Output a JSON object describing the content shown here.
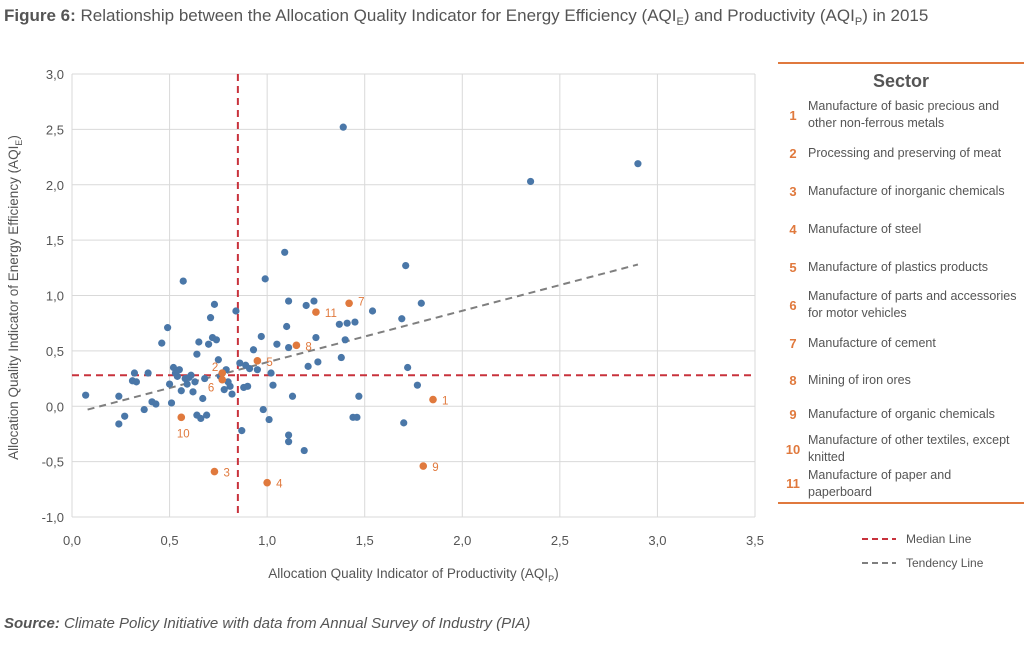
{
  "figure": {
    "label": "Figure 6:",
    "title_main": "Relationship between the Allocation Quality Indicator for Energy Efficiency (AQI",
    "title_sub_e": "E",
    "title_mid": ") and Productivity (AQI",
    "title_sub_p": "P",
    "title_end": ") in 2015"
  },
  "source": {
    "label": "Source:",
    "text": "Climate Policy Initiative with data from Annual Survey of Industry (PIA)"
  },
  "legend": {
    "heading": "Sector",
    "sectors": [
      {
        "num": "1",
        "name": "Manufacture of basic precious and other non-ferrous metals"
      },
      {
        "num": "2",
        "name": "Processing and preserving of meat"
      },
      {
        "num": "3",
        "name": "Manufacture of inorganic chemicals"
      },
      {
        "num": "4",
        "name": "Manufacture of steel"
      },
      {
        "num": "5",
        "name": "Manufacture of plastics products"
      },
      {
        "num": "6",
        "name": "Manufacture of parts and accessories for motor vehicles"
      },
      {
        "num": "7",
        "name": "Manufacture of cement"
      },
      {
        "num": "8",
        "name": "Mining of iron ores"
      },
      {
        "num": "9",
        "name": "Manufacture of organic chemicals"
      },
      {
        "num": "10",
        "name": "Manufacture of other textiles, except knitted"
      },
      {
        "num": "11",
        "name": "Manufacture of paper and paperboard"
      }
    ],
    "median_label": "Median Line",
    "tendency_label": "Tendency Line"
  },
  "colors": {
    "blue": "#4a77a8",
    "orange": "#e0793d",
    "median": "#c8323c",
    "tendency": "#7f7f7f",
    "grid": "#d9d9d9"
  },
  "chart_data": {
    "type": "scatter",
    "xlabel": "Allocation Quality Indicator of Productivity (AQI",
    "xlabel_sub": "P",
    "xlabel_end": ")",
    "ylabel": "Allocation Quality Indicator of Energy Efficiency (AQI",
    "ylabel_sub": "E",
    "ylabel_end": ")",
    "xlim": [
      0,
      3.5
    ],
    "ylim": [
      -1,
      3
    ],
    "x_ticks": [
      "0,0",
      "0,5",
      "1,0",
      "1,5",
      "2,0",
      "2,5",
      "3,0",
      "3,5"
    ],
    "x_tick_values": [
      0,
      0.5,
      1.0,
      1.5,
      2.0,
      2.5,
      3.0,
      3.5
    ],
    "y_ticks": [
      "3,0",
      "2,5",
      "2,0",
      "1,5",
      "1,0",
      "0,5",
      "0,0",
      "-0,5",
      "-1,0"
    ],
    "y_tick_values": [
      3.0,
      2.5,
      2.0,
      1.5,
      1.0,
      0.5,
      0.0,
      -0.5,
      -1.0
    ],
    "grid": true,
    "median_x": 0.85,
    "median_y": 0.28,
    "tendency_line": {
      "x": [
        0.08,
        2.9
      ],
      "y": [
        -0.03,
        1.28
      ]
    },
    "highlighted": [
      {
        "label": "1",
        "x": 1.85,
        "y": 0.06
      },
      {
        "label": "2",
        "x": 0.77,
        "y": 0.3
      },
      {
        "label": "3",
        "x": 0.73,
        "y": -0.59
      },
      {
        "label": "4",
        "x": 1.0,
        "y": -0.69
      },
      {
        "label": "5",
        "x": 0.95,
        "y": 0.41
      },
      {
        "label": "6",
        "x": 0.77,
        "y": 0.24
      },
      {
        "label": "7",
        "x": 1.42,
        "y": 0.93
      },
      {
        "label": "8",
        "x": 1.15,
        "y": 0.55
      },
      {
        "label": "9",
        "x": 1.8,
        "y": -0.54
      },
      {
        "label": "10",
        "x": 0.56,
        "y": -0.1
      },
      {
        "label": "11",
        "x": 1.25,
        "y": 0.85
      }
    ],
    "points": [
      [
        0.07,
        0.1
      ],
      [
        0.24,
        0.09
      ],
      [
        0.24,
        -0.16
      ],
      [
        0.27,
        -0.09
      ],
      [
        0.31,
        0.23
      ],
      [
        0.32,
        0.3
      ],
      [
        0.33,
        0.22
      ],
      [
        0.37,
        -0.03
      ],
      [
        0.39,
        0.3
      ],
      [
        0.41,
        0.04
      ],
      [
        0.43,
        0.02
      ],
      [
        0.46,
        0.57
      ],
      [
        0.49,
        0.71
      ],
      [
        0.5,
        0.2
      ],
      [
        0.51,
        0.03
      ],
      [
        0.52,
        0.35
      ],
      [
        0.53,
        0.3
      ],
      [
        0.54,
        0.27
      ],
      [
        0.55,
        0.33
      ],
      [
        0.56,
        0.14
      ],
      [
        0.57,
        1.13
      ],
      [
        0.58,
        0.25
      ],
      [
        0.59,
        0.2
      ],
      [
        0.6,
        0.26
      ],
      [
        0.61,
        0.28
      ],
      [
        0.62,
        0.13
      ],
      [
        0.63,
        0.22
      ],
      [
        0.64,
        0.47
      ],
      [
        0.64,
        -0.08
      ],
      [
        0.65,
        0.58
      ],
      [
        0.66,
        -0.11
      ],
      [
        0.67,
        0.07
      ],
      [
        0.68,
        0.25
      ],
      [
        0.69,
        -0.08
      ],
      [
        0.7,
        0.56
      ],
      [
        0.71,
        0.8
      ],
      [
        0.72,
        0.62
      ],
      [
        0.73,
        0.92
      ],
      [
        0.74,
        0.6
      ],
      [
        0.75,
        0.42
      ],
      [
        0.76,
        0.27
      ],
      [
        0.78,
        0.15
      ],
      [
        0.79,
        0.33
      ],
      [
        0.8,
        0.22
      ],
      [
        0.81,
        0.18
      ],
      [
        0.82,
        0.11
      ],
      [
        0.84,
        0.86
      ],
      [
        0.86,
        0.39
      ],
      [
        0.87,
        -0.22
      ],
      [
        0.88,
        0.17
      ],
      [
        0.89,
        0.37
      ],
      [
        0.9,
        0.18
      ],
      [
        0.91,
        0.34
      ],
      [
        0.93,
        0.51
      ],
      [
        0.95,
        0.33
      ],
      [
        0.97,
        0.63
      ],
      [
        0.98,
        -0.03
      ],
      [
        0.99,
        1.15
      ],
      [
        1.01,
        -0.12
      ],
      [
        1.02,
        0.3
      ],
      [
        1.03,
        0.19
      ],
      [
        1.05,
        0.56
      ],
      [
        1.09,
        1.39
      ],
      [
        1.1,
        0.72
      ],
      [
        1.11,
        0.95
      ],
      [
        1.11,
        0.53
      ],
      [
        1.11,
        -0.26
      ],
      [
        1.11,
        -0.32
      ],
      [
        1.13,
        0.09
      ],
      [
        1.19,
        -0.4
      ],
      [
        1.2,
        0.91
      ],
      [
        1.21,
        0.36
      ],
      [
        1.24,
        0.95
      ],
      [
        1.25,
        0.62
      ],
      [
        1.26,
        0.4
      ],
      [
        1.37,
        0.74
      ],
      [
        1.38,
        0.44
      ],
      [
        1.39,
        2.52
      ],
      [
        1.4,
        0.6
      ],
      [
        1.41,
        0.75
      ],
      [
        1.44,
        -0.1
      ],
      [
        1.45,
        0.76
      ],
      [
        1.46,
        -0.1
      ],
      [
        1.47,
        0.09
      ],
      [
        1.54,
        0.86
      ],
      [
        1.69,
        0.79
      ],
      [
        1.7,
        -0.15
      ],
      [
        1.71,
        1.27
      ],
      [
        1.72,
        0.35
      ],
      [
        1.77,
        0.19
      ],
      [
        1.79,
        0.93
      ],
      [
        2.35,
        2.03
      ],
      [
        2.9,
        2.19
      ]
    ]
  }
}
